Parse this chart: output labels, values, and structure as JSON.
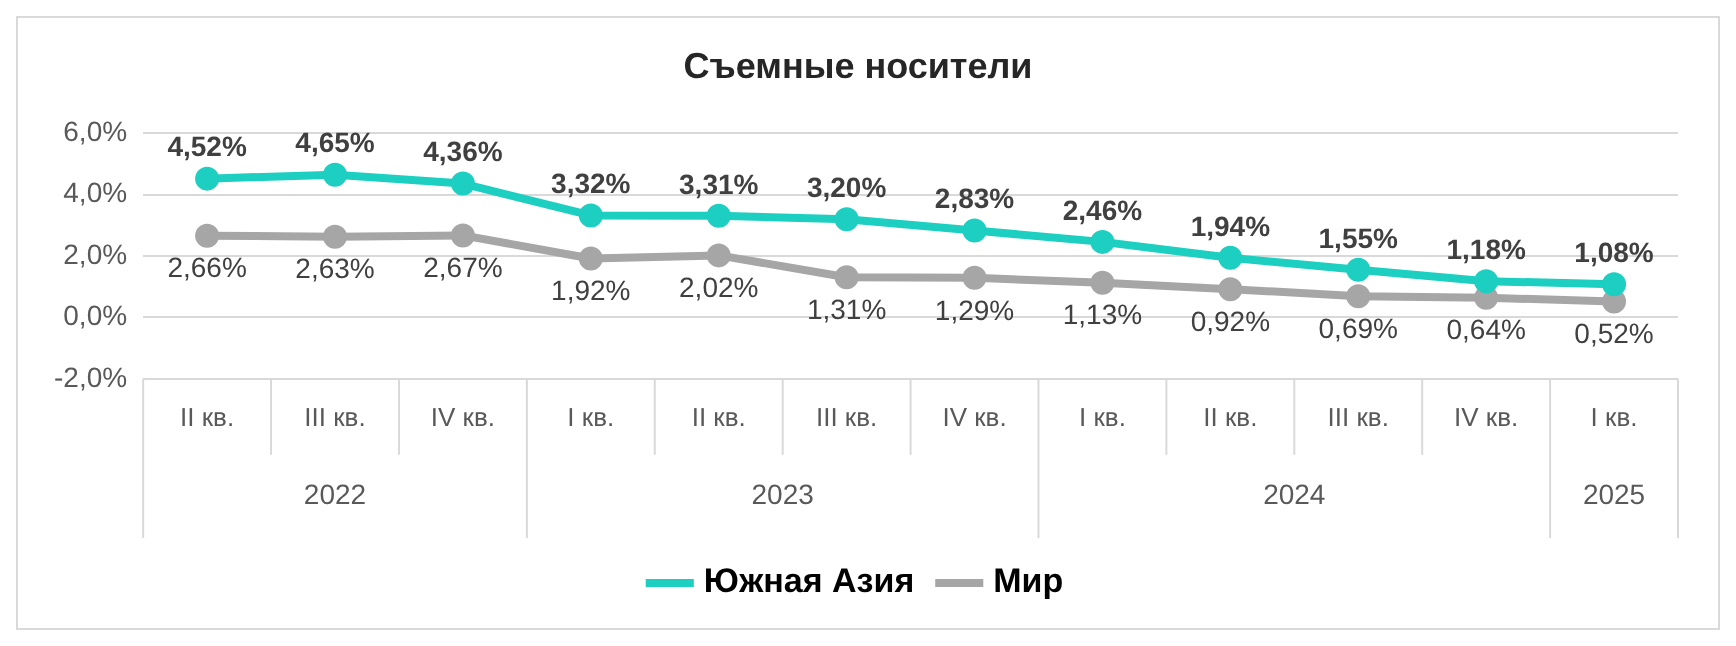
{
  "chart_data": {
    "type": "line",
    "title": "Съемные носители",
    "categories": [
      "II кв.",
      "III кв.",
      "IV кв.",
      "I кв.",
      "II кв.",
      "III кв.",
      "IV кв.",
      "I кв.",
      "II кв.",
      "III кв.",
      "IV кв.",
      "I кв."
    ],
    "series": [
      {
        "name": "Южная Азия",
        "color": "#1ccfc0",
        "values": [
          4.52,
          4.65,
          4.36,
          3.32,
          3.31,
          3.2,
          2.83,
          2.46,
          1.94,
          1.55,
          1.18,
          1.08
        ],
        "value_labels": [
          "4,52%",
          "4,65%",
          "4,36%",
          "3,32%",
          "3,31%",
          "3,20%",
          "2,83%",
          "2,46%",
          "1,94%",
          "1,55%",
          "1,18%",
          "1,08%"
        ]
      },
      {
        "name": "Мир",
        "color": "#a6a6a6",
        "values": [
          2.66,
          2.63,
          2.67,
          1.92,
          2.02,
          1.31,
          1.29,
          1.13,
          0.92,
          0.69,
          0.64,
          0.52
        ],
        "value_labels": [
          "2,66%",
          "2,63%",
          "2,67%",
          "1,92%",
          "2,02%",
          "1,31%",
          "1,29%",
          "1,13%",
          "0,92%",
          "0,69%",
          "0,64%",
          "0,52%"
        ]
      }
    ],
    "annotations": [
      "2022",
      "2023",
      "2024",
      "2025"
    ],
    "ylim": [
      -2,
      6
    ],
    "yticks": [
      {
        "value": -2,
        "label": "-2,0%"
      },
      {
        "value": 0,
        "label": "0,0%"
      },
      {
        "value": 2,
        "label": "2,0%"
      },
      {
        "value": 4,
        "label": "4,0%"
      },
      {
        "value": 6,
        "label": "6,0%"
      }
    ],
    "grid": "y",
    "legend": "bottom",
    "marker": "circle",
    "line_style": "solid"
  }
}
